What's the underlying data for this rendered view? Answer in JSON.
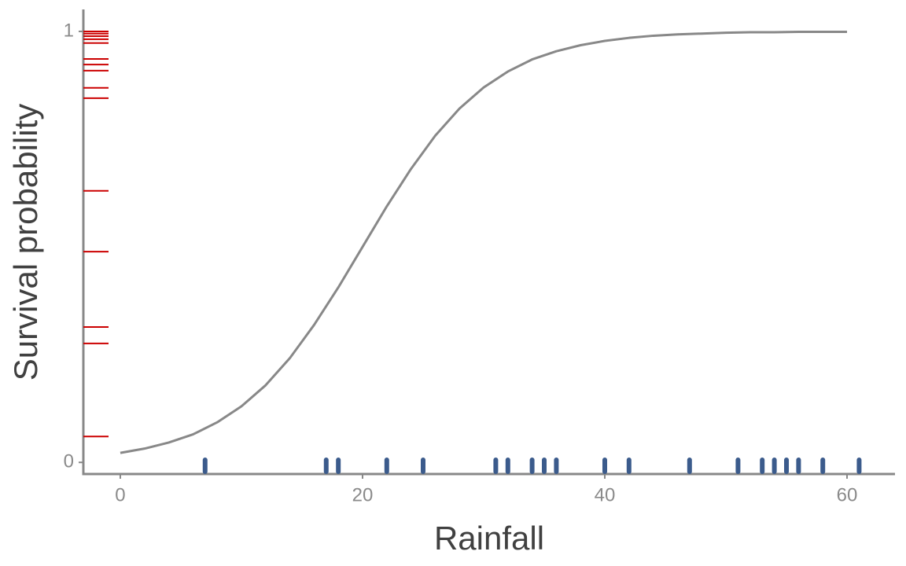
{
  "chart_data": {
    "type": "line",
    "x_label": "Rainfall",
    "y_label": "Survival probability",
    "x": [
      0,
      2,
      4,
      6,
      8,
      10,
      12,
      14,
      16,
      18,
      20,
      22,
      24,
      26,
      28,
      30,
      32,
      34,
      36,
      38,
      40,
      42,
      44,
      46,
      48,
      50,
      52,
      54,
      56,
      58,
      60
    ],
    "values": [
      0.022,
      0.032,
      0.046,
      0.065,
      0.093,
      0.13,
      0.179,
      0.242,
      0.319,
      0.406,
      0.5,
      0.594,
      0.681,
      0.758,
      0.821,
      0.87,
      0.907,
      0.935,
      0.954,
      0.968,
      0.978,
      0.985,
      0.99,
      0.993,
      0.995,
      0.997,
      0.998,
      0.998,
      0.999,
      0.999,
      0.999
    ],
    "color": "#888888",
    "x_rug": {
      "values": [
        7,
        17,
        18,
        22,
        25,
        31,
        32,
        34,
        35,
        36,
        40,
        42,
        47,
        51,
        53,
        54,
        55,
        56,
        58,
        61
      ],
      "color": "#3b5b8c"
    },
    "y_rug": {
      "values": [
        1.0,
        0.995,
        0.989,
        0.982,
        0.973,
        0.936,
        0.923,
        0.909,
        0.869,
        0.845,
        0.63,
        0.489,
        0.314,
        0.276,
        0.06
      ],
      "color": "#cc0000"
    },
    "xlim": [
      -3.05,
      63.96
    ],
    "ylim": [
      -0.027,
      1.051
    ],
    "xticks": [
      0,
      20,
      40,
      60
    ],
    "yticks": [
      0,
      1
    ]
  }
}
